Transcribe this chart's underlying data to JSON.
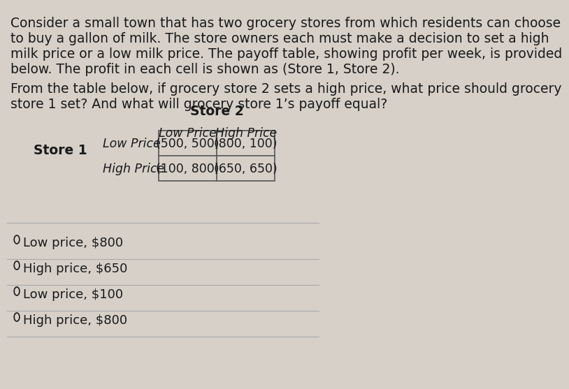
{
  "background_color": "#d6d0c8",
  "paragraph1": "Consider a small town that has two grocery stores from which residents can choose\nto buy a gallon of milk. The store owners each must make a decision to set a high\nmilk price or a low milk price. The payoff table, showing profit per week, is provided\nbelow. The profit in each cell is shown as (Store 1, Store 2).",
  "paragraph2": "From the table below, if grocery store 2 sets a high price, what price should grocery\nstore 1 set? And what will grocery store 1’s payoff equal?",
  "store2_label": "Store 2",
  "store1_label": "Store 1",
  "col_headers": [
    "Low Price",
    "High Price"
  ],
  "row_headers": [
    "Low Price",
    "High Price"
  ],
  "cells": [
    [
      "(500, 500)",
      "(800, 100)"
    ],
    [
      "(100, 800)",
      "(650, 650)"
    ]
  ],
  "options": [
    "Low price, $800",
    "High price, $650",
    "Low price, $100",
    "High price, $800"
  ],
  "text_color": "#1a1a1a",
  "table_border_color": "#555555",
  "option_circle_color": "#1a1a1a",
  "divider_color": "#aaaaaa",
  "font_size_body": 13.5,
  "font_size_table": 12.5,
  "font_size_options": 13.0
}
